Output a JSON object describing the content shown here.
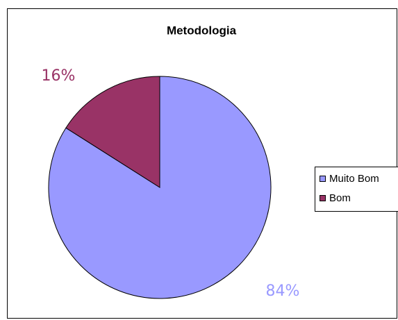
{
  "chart_data": {
    "type": "pie",
    "title": "Metodologia",
    "categories": [
      "Muito Bom",
      "Bom"
    ],
    "values": [
      84,
      16
    ],
    "value_labels": [
      "84%",
      "16%"
    ],
    "colors": [
      "#9999ff",
      "#993366"
    ],
    "legend": "right"
  }
}
